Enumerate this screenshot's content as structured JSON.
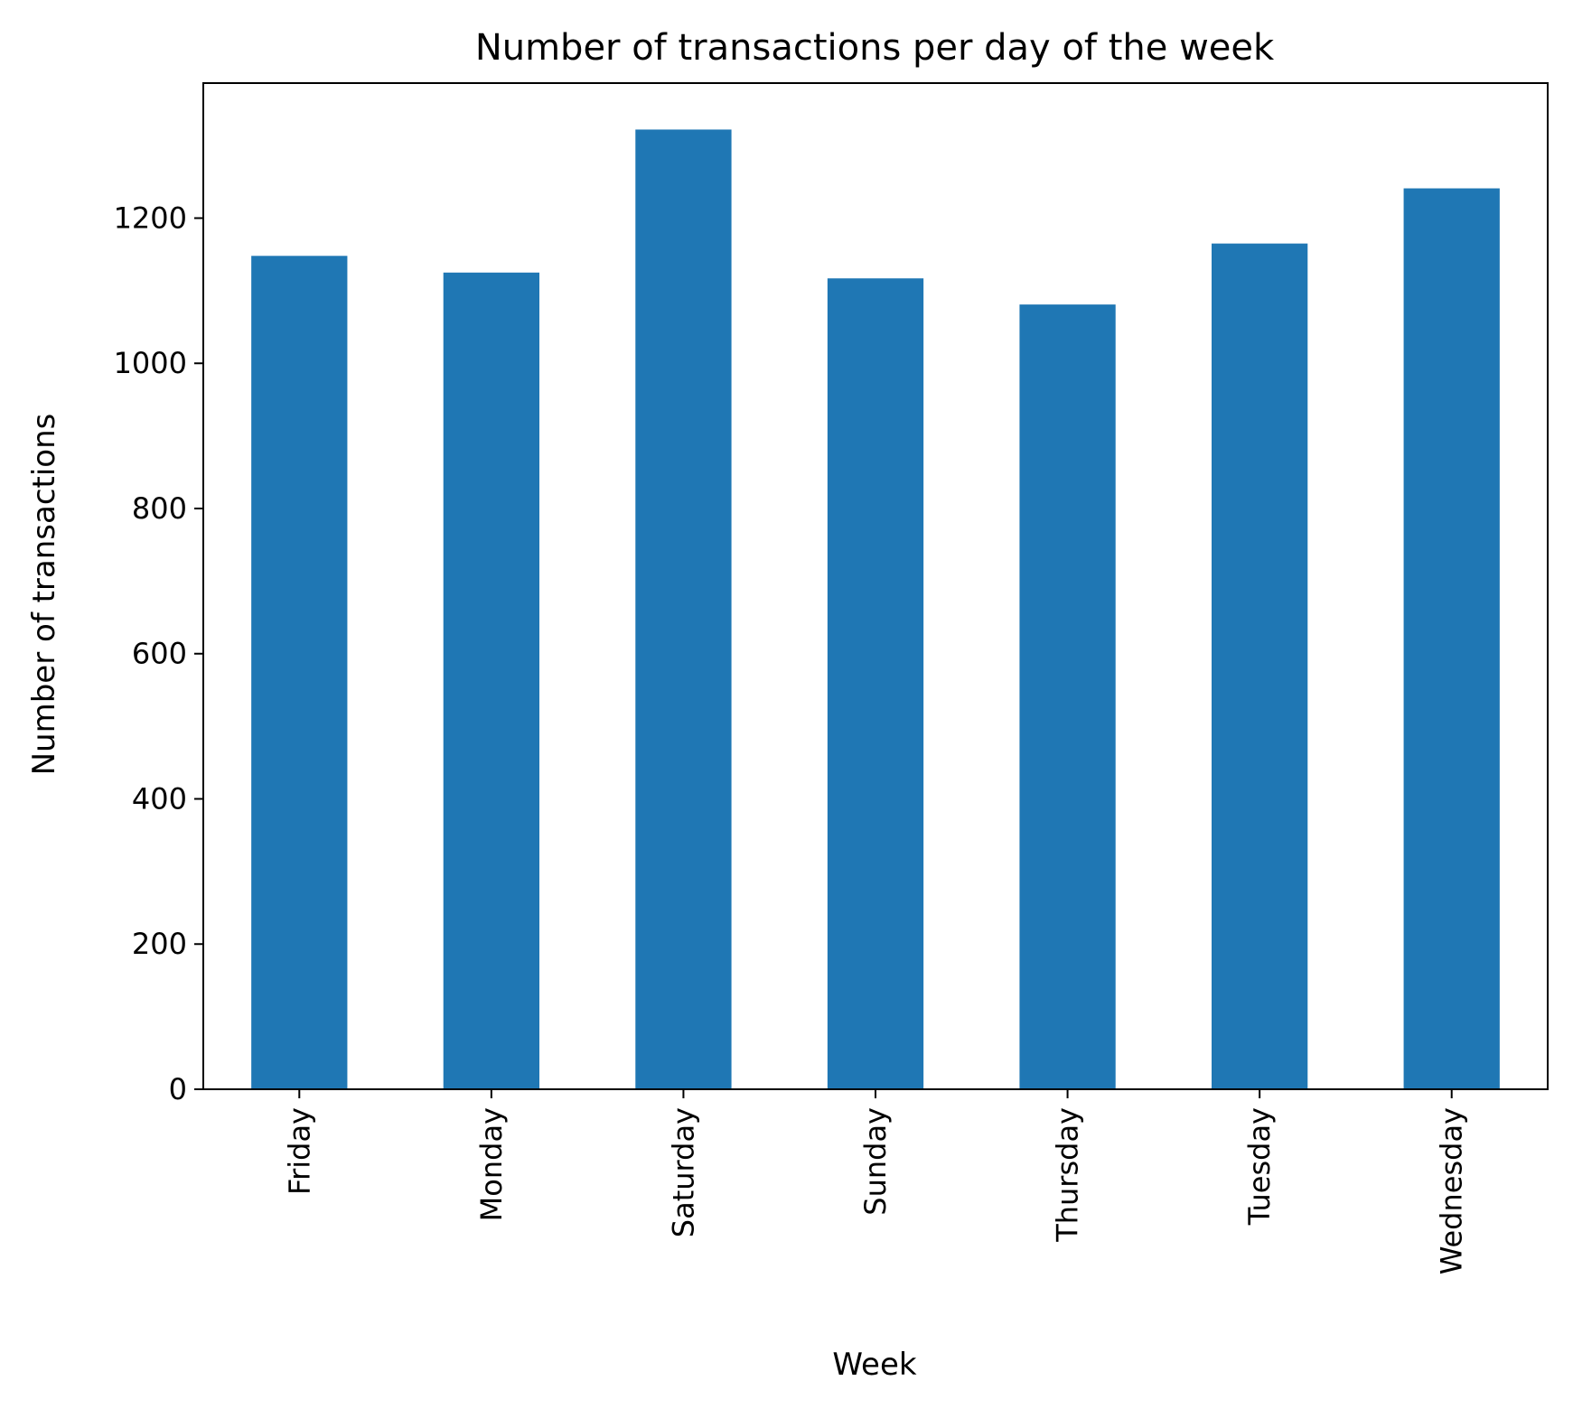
{
  "chart_data": {
    "type": "bar",
    "title": "Number of transactions per day of the week",
    "xlabel": "Week",
    "ylabel": "Number of transactions",
    "categories": [
      "Friday",
      "Monday",
      "Saturday",
      "Sunday",
      "Thursday",
      "Tuesday",
      "Wednesday"
    ],
    "values": [
      1148,
      1125,
      1322,
      1117,
      1081,
      1165,
      1241
    ],
    "ylim": [
      0,
      1386
    ],
    "yticks": [
      0,
      200,
      400,
      600,
      800,
      1000,
      1200
    ],
    "grid": false,
    "legend": "none",
    "bar_color": "#1f77b4"
  }
}
